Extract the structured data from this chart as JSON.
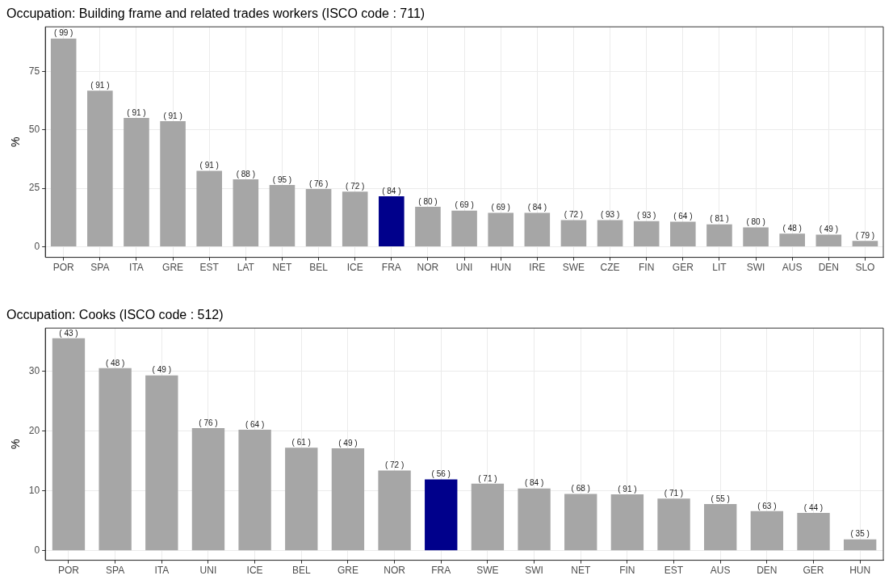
{
  "chart_data": [
    {
      "type": "bar",
      "title": "Occupation: Building frame and related trades workers (ISCO code : 711)",
      "ylabel": "%",
      "categories": [
        "POR",
        "SPA",
        "ITA",
        "GRE",
        "EST",
        "LAT",
        "NET",
        "BEL",
        "ICE",
        "FRA",
        "NOR",
        "UNI",
        "HUN",
        "IRE",
        "SWE",
        "CZE",
        "FIN",
        "GER",
        "LIT",
        "SWI",
        "AUS",
        "DEN",
        "SLO"
      ],
      "values": [
        89,
        66.7,
        55.1,
        53.7,
        32.5,
        28.8,
        26.4,
        24.7,
        23.6,
        21.6,
        17.1,
        15.5,
        14.5,
        14.5,
        11.4,
        11.4,
        11,
        10.7,
        9.6,
        8.3,
        5.6,
        5.2,
        2.5
      ],
      "colors": [
        "#a6a6a6",
        "#a6a6a6",
        "#a6a6a6",
        "#a6a6a6",
        "#a6a6a6",
        "#a6a6a6",
        "#a6a6a6",
        "#a6a6a6",
        "#a6a6a6",
        "#00008b",
        "#a6a6a6",
        "#a6a6a6",
        "#a6a6a6",
        "#a6a6a6",
        "#a6a6a6",
        "#a6a6a6",
        "#a6a6a6",
        "#a6a6a6",
        "#a6a6a6",
        "#a6a6a6",
        "#a6a6a6",
        "#a6a6a6",
        "#a6a6a6"
      ],
      "annotations": [
        {
          "text": "( 99 )",
          "x": "POR",
          "y": 89
        },
        {
          "text": "( 91 )",
          "x": "SPA",
          "y": 66.7
        },
        {
          "text": "( 91 )",
          "x": "ITA",
          "y": 55.1
        },
        {
          "text": "( 91 )",
          "x": "GRE",
          "y": 53.7
        },
        {
          "text": "( 91 )",
          "x": "EST",
          "y": 32.5
        },
        {
          "text": "( 88 )",
          "x": "LAT",
          "y": 28.8
        },
        {
          "text": "( 95 )",
          "x": "NET",
          "y": 26.4
        },
        {
          "text": "( 76 )",
          "x": "BEL",
          "y": 24.7
        },
        {
          "text": "( 72 )",
          "x": "ICE",
          "y": 23.6
        },
        {
          "text": "( 84 )",
          "x": "FRA",
          "y": 21.6
        },
        {
          "text": "( 80 )",
          "x": "NOR",
          "y": 17.1
        },
        {
          "text": "( 69 )",
          "x": "UNI",
          "y": 15.5
        },
        {
          "text": "( 69 )",
          "x": "HUN",
          "y": 14.5
        },
        {
          "text": "( 84 )",
          "x": "IRE",
          "y": 14.5
        },
        {
          "text": "( 72 )",
          "x": "SWE",
          "y": 11.4
        },
        {
          "text": "( 93 )",
          "x": "CZE",
          "y": 11.4
        },
        {
          "text": "( 93 )",
          "x": "FIN",
          "y": 11
        },
        {
          "text": "( 64 )",
          "x": "GER",
          "y": 10.7
        },
        {
          "text": "( 81 )",
          "x": "LIT",
          "y": 9.6
        },
        {
          "text": "( 80 )",
          "x": "SWI",
          "y": 8.3
        },
        {
          "text": "( 48 )",
          "x": "AUS",
          "y": 5.6
        },
        {
          "text": "( 49 )",
          "x": "DEN",
          "y": 5.2
        },
        {
          "text": "( 79 )",
          "x": "SLO",
          "y": 2.5
        }
      ],
      "ylim": [
        -4.5,
        94
      ],
      "yticks": [
        0,
        25,
        50,
        75
      ],
      "grid": true
    },
    {
      "type": "bar",
      "title": "Occupation: Cooks (ISCO code : 512)",
      "ylabel": "%",
      "categories": [
        "POR",
        "SPA",
        "ITA",
        "UNI",
        "ICE",
        "BEL",
        "GRE",
        "NOR",
        "FRA",
        "SWE",
        "SWI",
        "NET",
        "FIN",
        "EST",
        "AUS",
        "DEN",
        "GER",
        "HUN"
      ],
      "values": [
        35.5,
        30.5,
        29.3,
        20.5,
        20.2,
        17.2,
        17.1,
        13.4,
        11.9,
        11.2,
        10.4,
        9.5,
        9.4,
        8.7,
        7.8,
        6.6,
        6.3,
        1.9
      ],
      "colors": [
        "#a6a6a6",
        "#a6a6a6",
        "#a6a6a6",
        "#a6a6a6",
        "#a6a6a6",
        "#a6a6a6",
        "#a6a6a6",
        "#a6a6a6",
        "#00008b",
        "#a6a6a6",
        "#a6a6a6",
        "#a6a6a6",
        "#a6a6a6",
        "#a6a6a6",
        "#a6a6a6",
        "#a6a6a6",
        "#a6a6a6",
        "#a6a6a6"
      ],
      "annotations": [
        {
          "text": "( 43 )",
          "x": "POR",
          "y": 35.5
        },
        {
          "text": "( 48 )",
          "x": "SPA",
          "y": 30.5
        },
        {
          "text": "( 49 )",
          "x": "ITA",
          "y": 29.3
        },
        {
          "text": "( 76 )",
          "x": "UNI",
          "y": 20.5
        },
        {
          "text": "( 64 )",
          "x": "ICE",
          "y": 20.2
        },
        {
          "text": "( 61 )",
          "x": "BEL",
          "y": 17.2
        },
        {
          "text": "( 49 )",
          "x": "GRE",
          "y": 17.1
        },
        {
          "text": "( 72 )",
          "x": "NOR",
          "y": 13.4
        },
        {
          "text": "( 56 )",
          "x": "FRA",
          "y": 11.9
        },
        {
          "text": "( 71 )",
          "x": "SWE",
          "y": 11.2
        },
        {
          "text": "( 84 )",
          "x": "SWI",
          "y": 10.4
        },
        {
          "text": "( 68 )",
          "x": "NET",
          "y": 9.5
        },
        {
          "text": "( 91 )",
          "x": "FIN",
          "y": 9.4
        },
        {
          "text": "( 71 )",
          "x": "EST",
          "y": 8.7
        },
        {
          "text": "( 55 )",
          "x": "AUS",
          "y": 7.8
        },
        {
          "text": "( 63 )",
          "x": "DEN",
          "y": 6.6
        },
        {
          "text": "( 44 )",
          "x": "GER",
          "y": 6.3
        },
        {
          "text": "( 35 )",
          "x": "HUN",
          "y": 1.9
        }
      ],
      "ylim": [
        -1.6,
        37.2
      ],
      "yticks": [
        0,
        10,
        20,
        30
      ],
      "grid": true
    }
  ]
}
